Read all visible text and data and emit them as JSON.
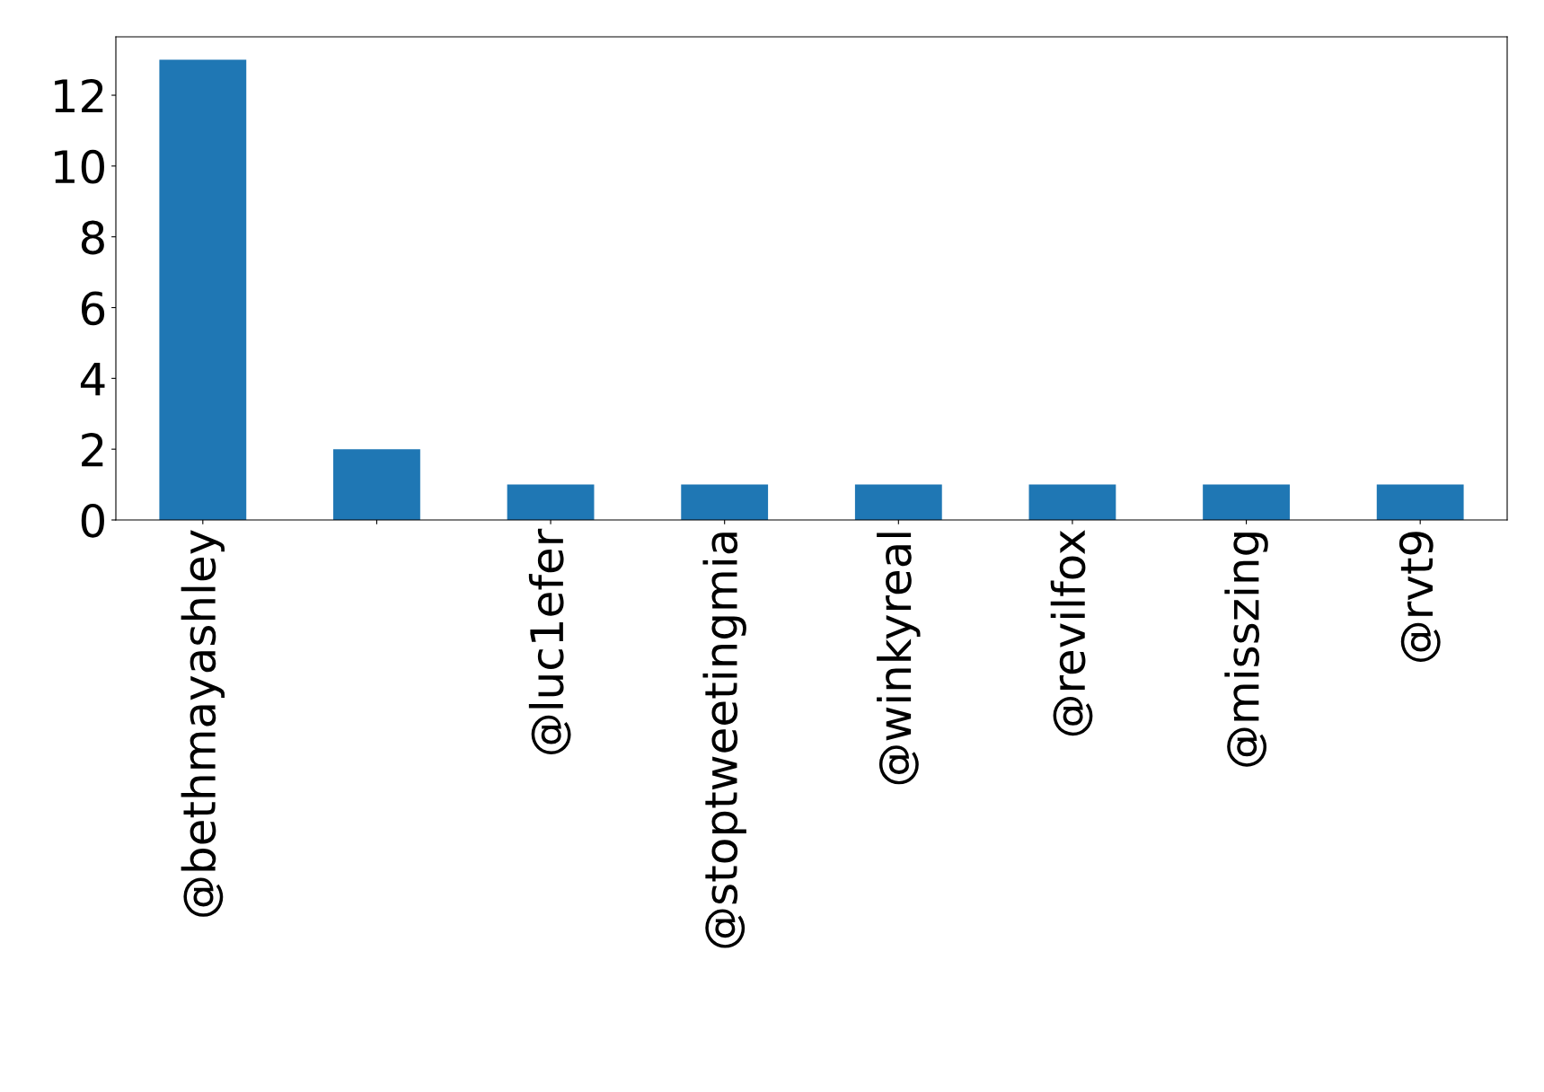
{
  "chart_data": {
    "type": "bar",
    "categories": [
      "@bethmayashley",
      null,
      "@luc1efer",
      "@stoptweetingmia",
      "@winkyreal",
      "@revilfox",
      "@misszing",
      "@rvt9"
    ],
    "values": [
      13,
      2,
      1,
      1,
      1,
      1,
      1,
      1
    ],
    "color": "#1f77b4",
    "ylim": [
      0,
      13.65
    ],
    "yticks": [
      0,
      2,
      4,
      6,
      8,
      10,
      12
    ],
    "grid": false,
    "legend": false
  }
}
